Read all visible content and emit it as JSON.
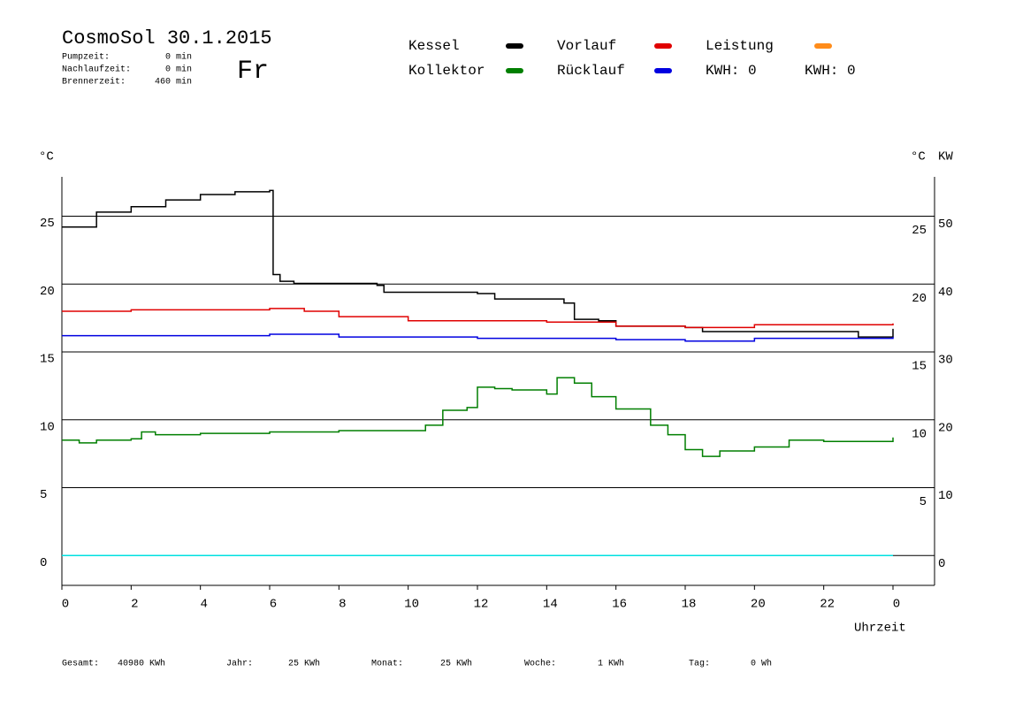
{
  "chart_data": {
    "type": "line",
    "title": "CosmoSol 30.1.2015",
    "day": "Fr",
    "info": [
      [
        "Pumpzeit:",
        "0 min"
      ],
      [
        "Nachlaufzeit:",
        "0 min"
      ],
      [
        "Brennerzeit:",
        "460 min"
      ]
    ],
    "y_label": "°C",
    "y2_label_left": "°C",
    "y2_label": "KW",
    "x_label": "Uhrzeit",
    "kwh_labels": [
      {
        "text": "KWH: 0",
        "color": "#e08a20"
      },
      {
        "text": "KWH: 0",
        "color": "#800080"
      }
    ],
    "footer": [
      [
        "Gesamt:",
        "40980 KWh"
      ],
      [
        "Jahr:",
        "25 KWh"
      ],
      [
        "Monat:",
        "25 KWh"
      ],
      [
        "Woche:",
        "1 KWh"
      ],
      [
        "Tag:",
        "0 Wh"
      ]
    ],
    "xlim": [
      0,
      24
    ],
    "xticks": [
      0,
      2,
      4,
      6,
      8,
      10,
      12,
      14,
      16,
      18,
      20,
      22,
      {
        "value": 24,
        "label": "0"
      }
    ],
    "ylim": [
      -2.2,
      27.9
    ],
    "yticks": [
      0,
      5,
      10,
      15,
      20,
      25
    ],
    "yticks_right": [
      5,
      10,
      15,
      20,
      25
    ],
    "y2lim": [
      -4.4,
      55.8
    ],
    "y2ticks": [
      0,
      10,
      20,
      30,
      40,
      50
    ],
    "grid": true,
    "series": [
      {
        "name": "Kessel",
        "color": "#000000",
        "x": [
          0,
          1,
          2,
          3,
          4,
          5,
          6,
          6.1,
          6.3,
          6.7,
          9.1,
          9.3,
          12,
          12.5,
          14.5,
          14.8,
          15.5,
          16,
          18,
          18.5,
          22.8,
          23,
          24
        ],
        "values": [
          24.2,
          25.3,
          25.7,
          26.2,
          26.6,
          26.8,
          26.9,
          20.7,
          20.2,
          20.05,
          19.9,
          19.4,
          19.3,
          18.9,
          18.6,
          17.4,
          17.3,
          16.9,
          16.8,
          16.5,
          16.5,
          16.1,
          16.7
        ]
      },
      {
        "name": "Kollektor",
        "color": "#007f00",
        "x": [
          0,
          0.5,
          1,
          2,
          2.3,
          2.7,
          4,
          6,
          8,
          10,
          10.5,
          11,
          11.7,
          12,
          12.5,
          13,
          14,
          14.3,
          14.8,
          15.3,
          16,
          17,
          17.5,
          18,
          18.5,
          19,
          20,
          21,
          22,
          24
        ],
        "values": [
          8.5,
          8.3,
          8.5,
          8.6,
          9.1,
          8.9,
          9.0,
          9.1,
          9.2,
          9.2,
          9.6,
          10.7,
          10.9,
          12.4,
          12.3,
          12.2,
          11.9,
          13.1,
          12.7,
          11.7,
          10.8,
          9.6,
          8.9,
          7.8,
          7.3,
          7.7,
          8.0,
          8.5,
          8.4,
          8.7
        ]
      },
      {
        "name": "Vorlauf",
        "color": "#e00000",
        "x": [
          0,
          2,
          6,
          7,
          8,
          10,
          14,
          16,
          18,
          20,
          24
        ],
        "values": [
          18.0,
          18.1,
          18.2,
          18.0,
          17.6,
          17.3,
          17.2,
          16.9,
          16.8,
          17.0,
          17.1
        ]
      },
      {
        "name": "Rücklauf",
        "color": "#0000e0",
        "x": [
          0,
          6,
          8,
          12,
          16,
          18,
          20,
          24
        ],
        "values": [
          16.2,
          16.3,
          16.1,
          16.0,
          15.9,
          15.8,
          16.0,
          16.1
        ]
      },
      {
        "name": "Leistung",
        "color": "#00e0e0",
        "legend_color": "#ff8c1a",
        "axis": "y2",
        "x": [
          0,
          24
        ],
        "values": [
          0,
          0
        ]
      }
    ]
  }
}
